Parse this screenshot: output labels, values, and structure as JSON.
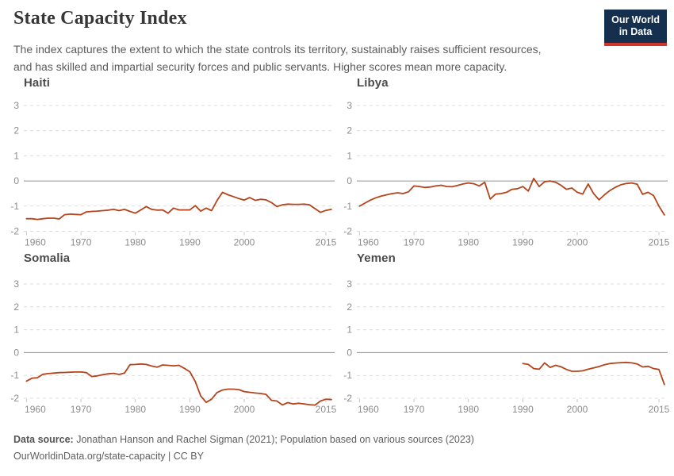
{
  "header": {
    "title": "State Capacity Index",
    "subtitle_line1": "The index captures the extent to which the state controls its territory, sustainably raises sufficient resources,",
    "subtitle_line2": "and has skilled and impartial security forces and public servants. Higher scores mean more capacity.",
    "logo": {
      "line1": "Our World",
      "line2": "in Data",
      "bg_color": "#15304e",
      "accent_color": "#d0342c"
    }
  },
  "colors": {
    "line": "#b5431b",
    "grid_line": "#dcdcdc",
    "zero_line": "#949494",
    "axis_label": "#8c8c8c",
    "tick_mark": "#c4c4c4"
  },
  "chart_data": [
    {
      "type": "line",
      "title": "Haiti",
      "xlabel": "",
      "ylabel": "",
      "ylim": [
        -2,
        3
      ],
      "xlim": [
        1960,
        2016
      ],
      "y_ticks": [
        3,
        2,
        1,
        0,
        -1,
        -2
      ],
      "x_ticks": [
        1960,
        1970,
        1980,
        1990,
        2000,
        2015
      ],
      "grid": true,
      "legend": "none",
      "line_color": "#b5431b",
      "x": [
        1960,
        1961,
        1962,
        1963,
        1964,
        1965,
        1966,
        1967,
        1968,
        1969,
        1970,
        1971,
        1972,
        1973,
        1974,
        1975,
        1976,
        1977,
        1978,
        1979,
        1980,
        1981,
        1982,
        1983,
        1984,
        1985,
        1986,
        1987,
        1988,
        1989,
        1990,
        1991,
        1992,
        1993,
        1994,
        1995,
        1996,
        1997,
        1998,
        1999,
        2000,
        2001,
        2002,
        2003,
        2004,
        2005,
        2006,
        2007,
        2008,
        2009,
        2010,
        2011,
        2012,
        2013,
        2014,
        2015,
        2016
      ],
      "y": [
        -1.5,
        -1.5,
        -1.53,
        -1.5,
        -1.48,
        -1.48,
        -1.51,
        -1.34,
        -1.32,
        -1.33,
        -1.34,
        -1.23,
        -1.21,
        -1.2,
        -1.18,
        -1.16,
        -1.13,
        -1.18,
        -1.13,
        -1.21,
        -1.28,
        -1.15,
        -1.02,
        -1.13,
        -1.16,
        -1.15,
        -1.28,
        -1.08,
        -1.15,
        -1.15,
        -1.15,
        -0.98,
        -1.2,
        -1.08,
        -1.18,
        -0.78,
        -0.45,
        -0.55,
        -0.62,
        -0.7,
        -0.76,
        -0.66,
        -0.77,
        -0.73,
        -0.75,
        -0.86,
        -1.02,
        -0.95,
        -0.92,
        -0.93,
        -0.93,
        -0.92,
        -0.95,
        -1.1,
        -1.25,
        -1.17,
        -1.13
      ]
    },
    {
      "type": "line",
      "title": "Libya",
      "xlabel": "",
      "ylabel": "",
      "ylim": [
        -2,
        3
      ],
      "xlim": [
        1960,
        2016
      ],
      "y_ticks": [
        3,
        2,
        1,
        0,
        -1,
        -2
      ],
      "x_ticks": [
        1960,
        1970,
        1980,
        1990,
        2000,
        2015
      ],
      "grid": true,
      "legend": "none",
      "line_color": "#b5431b",
      "x": [
        1960,
        1961,
        1962,
        1963,
        1964,
        1965,
        1966,
        1967,
        1968,
        1969,
        1970,
        1971,
        1972,
        1973,
        1974,
        1975,
        1976,
        1977,
        1978,
        1979,
        1980,
        1981,
        1982,
        1983,
        1984,
        1985,
        1986,
        1987,
        1988,
        1989,
        1990,
        1991,
        1992,
        1993,
        1994,
        1995,
        1996,
        1997,
        1998,
        1999,
        2000,
        2001,
        2002,
        2003,
        2004,
        2005,
        2006,
        2007,
        2008,
        2009,
        2010,
        2011,
        2012,
        2013,
        2014,
        2015,
        2016
      ],
      "y": [
        -1.0,
        -0.88,
        -0.76,
        -0.67,
        -0.6,
        -0.55,
        -0.5,
        -0.47,
        -0.5,
        -0.43,
        -0.2,
        -0.22,
        -0.26,
        -0.24,
        -0.2,
        -0.17,
        -0.22,
        -0.23,
        -0.18,
        -0.12,
        -0.08,
        -0.11,
        -0.2,
        -0.05,
        -0.72,
        -0.52,
        -0.5,
        -0.45,
        -0.33,
        -0.31,
        -0.22,
        -0.4,
        0.1,
        -0.22,
        -0.03,
        0.0,
        -0.05,
        -0.17,
        -0.33,
        -0.28,
        -0.45,
        -0.52,
        -0.12,
        -0.5,
        -0.75,
        -0.55,
        -0.38,
        -0.25,
        -0.15,
        -0.1,
        -0.08,
        -0.13,
        -0.53,
        -0.45,
        -0.58,
        -1.0,
        -1.35
      ]
    },
    {
      "type": "line",
      "title": "Somalia",
      "xlabel": "",
      "ylabel": "",
      "ylim": [
        -2,
        3
      ],
      "xlim": [
        1960,
        2016
      ],
      "y_ticks": [
        3,
        2,
        1,
        0,
        -1,
        -2
      ],
      "x_ticks": [
        1960,
        1970,
        1980,
        1990,
        2000,
        2015
      ],
      "grid": true,
      "legend": "none",
      "line_color": "#b5431b",
      "x": [
        1960,
        1961,
        1962,
        1963,
        1964,
        1965,
        1966,
        1967,
        1968,
        1969,
        1970,
        1971,
        1972,
        1973,
        1974,
        1975,
        1976,
        1977,
        1978,
        1979,
        1980,
        1981,
        1982,
        1983,
        1984,
        1985,
        1986,
        1987,
        1988,
        1989,
        1990,
        1991,
        1992,
        1993,
        1994,
        1995,
        1996,
        1997,
        1998,
        1999,
        2000,
        2001,
        2002,
        2003,
        2004,
        2005,
        2006,
        2007,
        2008,
        2009,
        2010,
        2011,
        2012,
        2013,
        2014,
        2015,
        2016
      ],
      "y": [
        -1.25,
        -1.12,
        -1.1,
        -0.95,
        -0.92,
        -0.9,
        -0.88,
        -0.87,
        -0.86,
        -0.85,
        -0.85,
        -0.88,
        -1.05,
        -1.02,
        -0.97,
        -0.93,
        -0.91,
        -0.96,
        -0.9,
        -0.53,
        -0.52,
        -0.5,
        -0.52,
        -0.59,
        -0.64,
        -0.54,
        -0.56,
        -0.58,
        -0.56,
        -0.69,
        -0.84,
        -1.27,
        -1.9,
        -2.18,
        -2.04,
        -1.75,
        -1.64,
        -1.6,
        -1.6,
        -1.62,
        -1.71,
        -1.74,
        -1.77,
        -1.79,
        -1.83,
        -2.09,
        -2.12,
        -2.29,
        -2.19,
        -2.25,
        -2.22,
        -2.25,
        -2.28,
        -2.3,
        -2.12,
        -2.04,
        -2.06
      ]
    },
    {
      "type": "line",
      "title": "Yemen",
      "xlabel": "",
      "ylabel": "",
      "ylim": [
        -2,
        3
      ],
      "xlim": [
        1960,
        2016
      ],
      "y_ticks": [
        3,
        2,
        1,
        0,
        -1,
        -2
      ],
      "x_ticks": [
        1960,
        1970,
        1980,
        1990,
        2000,
        2015
      ],
      "grid": true,
      "legend": "none",
      "line_color": "#b5431b",
      "x": [
        1990,
        1991,
        1992,
        1993,
        1994,
        1995,
        1996,
        1997,
        1998,
        1999,
        2000,
        2001,
        2002,
        2003,
        2004,
        2005,
        2006,
        2007,
        2008,
        2009,
        2010,
        2011,
        2012,
        2013,
        2014,
        2015,
        2016
      ],
      "y": [
        -0.48,
        -0.52,
        -0.7,
        -0.73,
        -0.45,
        -0.65,
        -0.56,
        -0.62,
        -0.74,
        -0.82,
        -0.82,
        -0.8,
        -0.73,
        -0.67,
        -0.61,
        -0.53,
        -0.48,
        -0.46,
        -0.44,
        -0.43,
        -0.45,
        -0.5,
        -0.63,
        -0.6,
        -0.7,
        -0.74,
        -1.4
      ]
    }
  ],
  "footer": {
    "source_label": "Data source:",
    "source_text": "Jonathan Hanson and Rachel Sigman (2021); Population based on various sources (2023)",
    "attribution": "OurWorldinData.org/state-capacity | CC BY"
  }
}
